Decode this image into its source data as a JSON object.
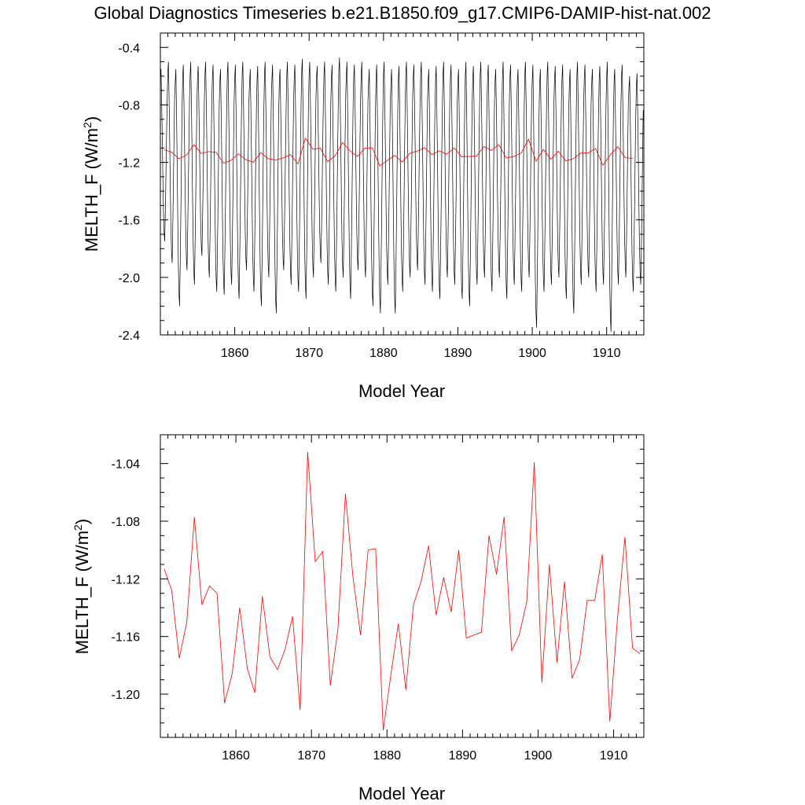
{
  "figure": {
    "title": "Global Diagnostics Timeseries b.e21.B1850.f09_g17.CMIP6-DAMIP-hist-nat.002"
  },
  "chart_data": [
    {
      "type": "line",
      "xlabel": "Model Year",
      "ylabel": "MELTH_F (W/m²)",
      "ylabel_main": "MELTH_F (W/m",
      "ylabel_sup": "2",
      "ylabel_close": ")",
      "xlim": [
        1850,
        1915
      ],
      "ylim": [
        -2.4,
        -0.3
      ],
      "xticks": [
        1860,
        1870,
        1880,
        1890,
        1900,
        1910
      ],
      "xtick_labels": [
        "1860",
        "1870",
        "1880",
        "1890",
        "1900",
        "1910"
      ],
      "yticks": [
        -0.4,
        -0.8,
        -1.2,
        -1.6,
        -2.0,
        -2.4
      ],
      "ytick_labels": [
        "-0.4",
        "-0.8",
        "-1.2",
        "-1.6",
        "-2.0",
        "-2.4"
      ],
      "grid": false,
      "series": [
        {
          "color": "#000000",
          "monthly_cycle_years": [
            1850,
            1915
          ],
          "annual_max": [
            -0.55,
            -0.5,
            -0.55,
            -0.52,
            -0.5,
            -0.53,
            -0.5,
            -0.52,
            -0.55,
            -0.5,
            -0.52,
            -0.5,
            -0.55,
            -0.53,
            -0.5,
            -0.52,
            -0.55,
            -0.5,
            -0.52,
            -0.48,
            -0.5,
            -0.53,
            -0.5,
            -0.52,
            -0.47,
            -0.5,
            -0.52,
            -0.5,
            -0.55,
            -0.52,
            -0.5,
            -0.55,
            -0.53,
            -0.5,
            -0.52,
            -0.5,
            -0.55,
            -0.53,
            -0.5,
            -0.52,
            -0.55,
            -0.5,
            -0.53,
            -0.5,
            -0.52,
            -0.55,
            -0.5,
            -0.52,
            -0.55,
            -0.5,
            -0.52,
            -0.55,
            -0.5,
            -0.53,
            -0.52,
            -0.55,
            -0.5,
            -0.52,
            -0.55,
            -0.53,
            -0.5,
            -0.55,
            -0.52,
            -0.6,
            -0.58
          ],
          "annual_min": [
            -1.75,
            -1.9,
            -2.2,
            -1.95,
            -2.05,
            -1.85,
            -2.0,
            -2.1,
            -2.12,
            -2.05,
            -2.15,
            -1.95,
            -2.1,
            -2.2,
            -2.0,
            -2.25,
            -1.95,
            -2.05,
            -2.1,
            -2.15,
            -2.0,
            -1.9,
            -2.05,
            -2.1,
            -2.0,
            -2.15,
            -1.95,
            -2.0,
            -2.2,
            -2.25,
            -2.05,
            -2.25,
            -2.1,
            -2.0,
            -1.95,
            -2.05,
            -2.1,
            -2.15,
            -2.0,
            -2.05,
            -2.15,
            -2.2,
            -2.05,
            -2.0,
            -2.1,
            -2.0,
            -2.15,
            -2.05,
            -2.1,
            -2.0,
            -2.35,
            -2.1,
            -2.05,
            -2.0,
            -2.15,
            -2.25,
            -2.05,
            -2.0,
            -2.1,
            -2.05,
            -2.38,
            -2.05,
            -2.0,
            -2.1,
            -2.05
          ]
        },
        {
          "color": "#ff0000",
          "x": [
            1850.5,
            1851.5,
            1852.5,
            1853.5,
            1854.5,
            1855.5,
            1856.5,
            1857.5,
            1858.5,
            1859.5,
            1860.5,
            1861.5,
            1862.5,
            1863.5,
            1864.5,
            1865.5,
            1866.5,
            1867.5,
            1868.5,
            1869.5,
            1870.5,
            1871.5,
            1872.5,
            1873.5,
            1874.5,
            1875.5,
            1876.5,
            1877.5,
            1878.5,
            1879.5,
            1880.5,
            1881.5,
            1882.5,
            1883.5,
            1884.5,
            1885.5,
            1886.5,
            1887.5,
            1888.5,
            1889.5,
            1890.5,
            1891.5,
            1892.5,
            1893.5,
            1894.5,
            1895.5,
            1896.5,
            1897.5,
            1898.5,
            1899.5,
            1900.5,
            1901.5,
            1902.5,
            1903.5,
            1904.5,
            1905.5,
            1906.5,
            1907.5,
            1908.5,
            1909.5,
            1910.5,
            1911.5,
            1912.5,
            1913.5
          ],
          "y": [
            -1.113,
            -1.128,
            -1.175,
            -1.15,
            -1.077,
            -1.138,
            -1.125,
            -1.13,
            -1.206,
            -1.186,
            -1.14,
            -1.182,
            -1.199,
            -1.132,
            -1.174,
            -1.183,
            -1.169,
            -1.146,
            -1.211,
            -1.032,
            -1.108,
            -1.101,
            -1.194,
            -1.155,
            -1.061,
            -1.119,
            -1.159,
            -1.1,
            -1.099,
            -1.225,
            -1.187,
            -1.151,
            -1.197,
            -1.138,
            -1.122,
            -1.097,
            -1.145,
            -1.119,
            -1.143,
            -1.1,
            -1.161,
            -1.159,
            -1.157,
            -1.09,
            -1.117,
            -1.077,
            -1.17,
            -1.159,
            -1.136,
            -1.039,
            -1.192,
            -1.11,
            -1.178,
            -1.122,
            -1.189,
            -1.176,
            -1.135,
            -1.135,
            -1.103,
            -1.219,
            -1.148,
            -1.091,
            -1.168,
            -1.172
          ]
        }
      ]
    },
    {
      "type": "line",
      "xlabel": "Model Year",
      "ylabel": "MELTH_F (W/m²)",
      "ylabel_main": "MELTH_F (W/m",
      "ylabel_sup": "2",
      "ylabel_close": ")",
      "xlim": [
        1850,
        1914
      ],
      "ylim": [
        -1.23,
        -1.02
      ],
      "xticks": [
        1860,
        1870,
        1880,
        1890,
        1900,
        1910
      ],
      "xtick_labels": [
        "1860",
        "1870",
        "1880",
        "1890",
        "1900",
        "1910"
      ],
      "yticks": [
        -1.04,
        -1.08,
        -1.12,
        -1.16,
        -1.2
      ],
      "ytick_labels": [
        "-1.04",
        "-1.08",
        "-1.12",
        "-1.16",
        "-1.20"
      ],
      "grid": false,
      "series": [
        {
          "color": "#ff0000",
          "x": [
            1850.5,
            1851.5,
            1852.5,
            1853.5,
            1854.5,
            1855.5,
            1856.5,
            1857.5,
            1858.5,
            1859.5,
            1860.5,
            1861.5,
            1862.5,
            1863.5,
            1864.5,
            1865.5,
            1866.5,
            1867.5,
            1868.5,
            1869.5,
            1870.5,
            1871.5,
            1872.5,
            1873.5,
            1874.5,
            1875.5,
            1876.5,
            1877.5,
            1878.5,
            1879.5,
            1880.5,
            1881.5,
            1882.5,
            1883.5,
            1884.5,
            1885.5,
            1886.5,
            1887.5,
            1888.5,
            1889.5,
            1890.5,
            1891.5,
            1892.5,
            1893.5,
            1894.5,
            1895.5,
            1896.5,
            1897.5,
            1898.5,
            1899.5,
            1900.5,
            1901.5,
            1902.5,
            1903.5,
            1904.5,
            1905.5,
            1906.5,
            1907.5,
            1908.5,
            1909.5,
            1910.5,
            1911.5,
            1912.5,
            1913.5
          ],
          "y": [
            -1.113,
            -1.128,
            -1.175,
            -1.15,
            -1.077,
            -1.138,
            -1.125,
            -1.13,
            -1.206,
            -1.186,
            -1.14,
            -1.182,
            -1.199,
            -1.132,
            -1.174,
            -1.183,
            -1.169,
            -1.146,
            -1.211,
            -1.032,
            -1.108,
            -1.101,
            -1.194,
            -1.155,
            -1.061,
            -1.119,
            -1.159,
            -1.1,
            -1.099,
            -1.225,
            -1.187,
            -1.151,
            -1.197,
            -1.138,
            -1.122,
            -1.097,
            -1.145,
            -1.119,
            -1.143,
            -1.1,
            -1.161,
            -1.159,
            -1.157,
            -1.09,
            -1.117,
            -1.077,
            -1.17,
            -1.159,
            -1.136,
            -1.039,
            -1.192,
            -1.11,
            -1.178,
            -1.122,
            -1.189,
            -1.176,
            -1.135,
            -1.135,
            -1.103,
            -1.219,
            -1.148,
            -1.091,
            -1.168,
            -1.172
          ]
        }
      ]
    }
  ]
}
